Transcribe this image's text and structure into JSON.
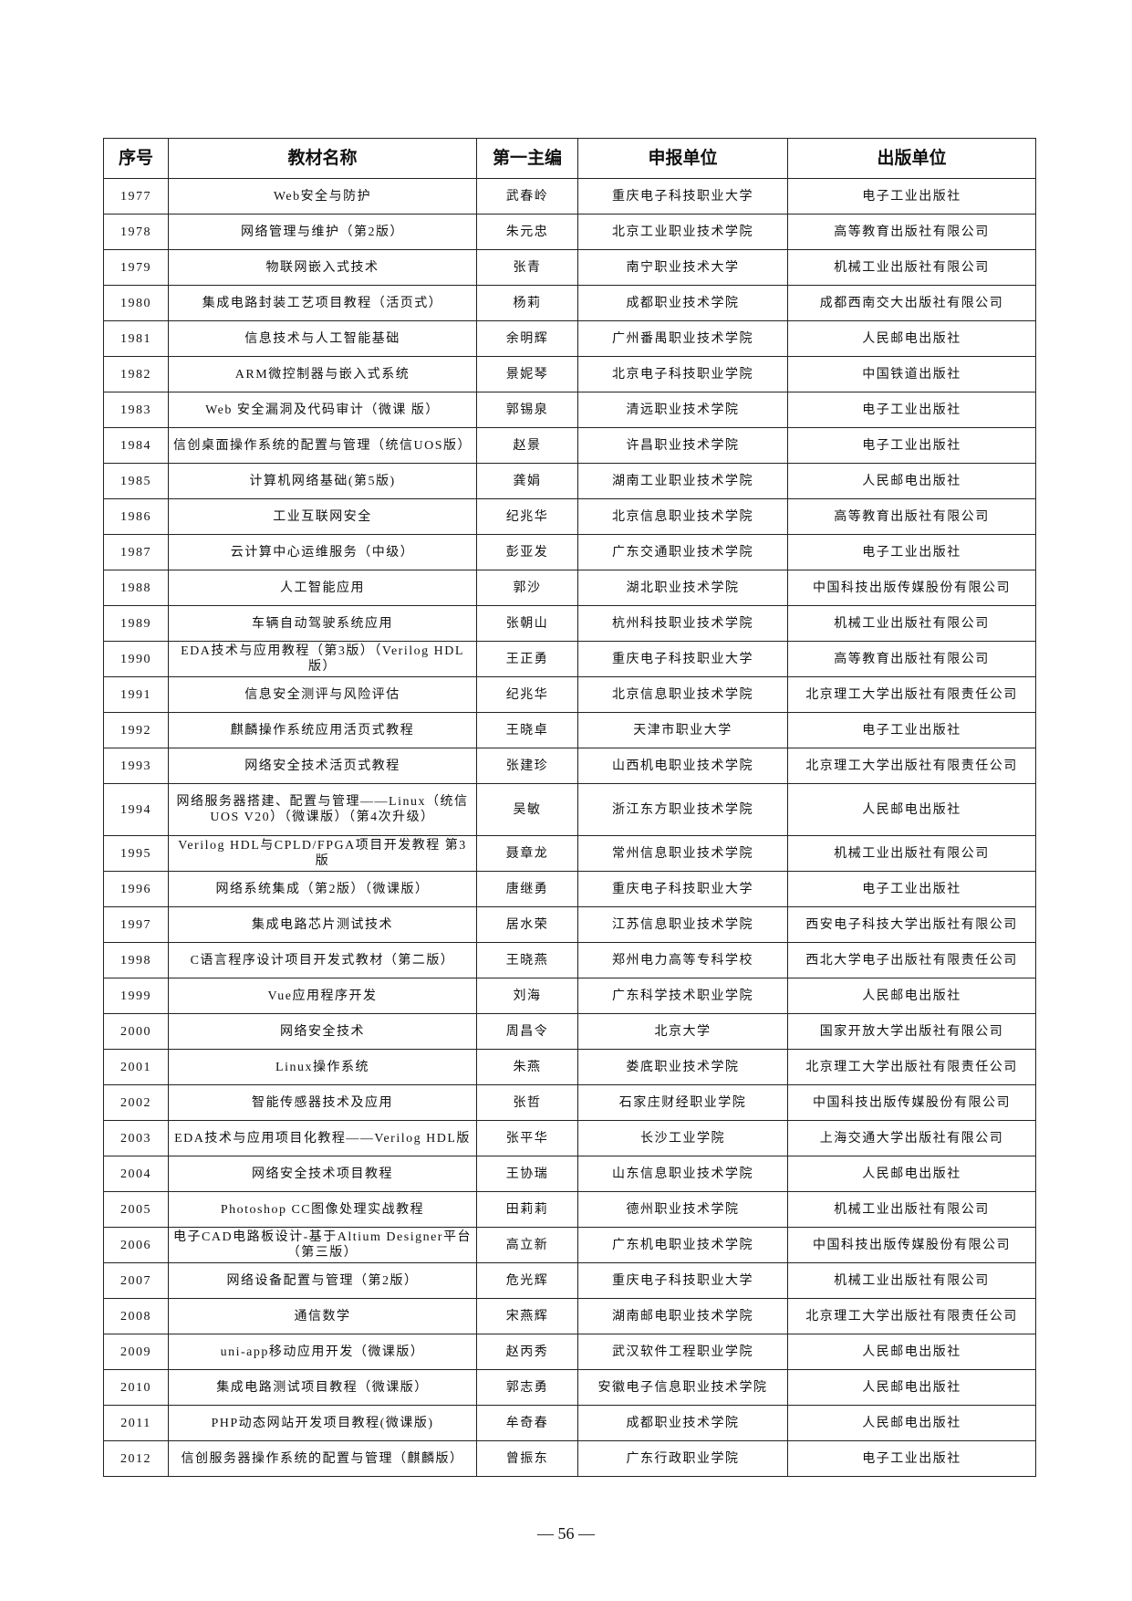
{
  "table": {
    "headers": [
      "序号",
      "教材名称",
      "第一主编",
      "申报单位",
      "出版单位"
    ],
    "rows": [
      [
        "1977",
        "Web安全与防护",
        "武春岭",
        "重庆电子科技职业大学",
        "电子工业出版社"
      ],
      [
        "1978",
        "网络管理与维护（第2版）",
        "朱元忠",
        "北京工业职业技术学院",
        "高等教育出版社有限公司"
      ],
      [
        "1979",
        "物联网嵌入式技术",
        "张青",
        "南宁职业技术大学",
        "机械工业出版社有限公司"
      ],
      [
        "1980",
        "集成电路封装工艺项目教程（活页式）",
        "杨莉",
        "成都职业技术学院",
        "成都西南交大出版社有限公司"
      ],
      [
        "1981",
        "信息技术与人工智能基础",
        "余明辉",
        "广州番禺职业技术学院",
        "人民邮电出版社"
      ],
      [
        "1982",
        "ARM微控制器与嵌入式系统",
        "景妮琴",
        "北京电子科技职业学院",
        "中国铁道出版社"
      ],
      [
        "1983",
        "Web 安全漏洞及代码审计（微课 版）",
        "郭锡泉",
        "清远职业技术学院",
        "电子工业出版社"
      ],
      [
        "1984",
        "信创桌面操作系统的配置与管理（统信UOS版）",
        "赵景",
        "许昌职业技术学院",
        "电子工业出版社"
      ],
      [
        "1985",
        "计算机网络基础(第5版)",
        "龚娟",
        "湖南工业职业技术学院",
        "人民邮电出版社"
      ],
      [
        "1986",
        "工业互联网安全",
        "纪兆华",
        "北京信息职业技术学院",
        "高等教育出版社有限公司"
      ],
      [
        "1987",
        "云计算中心运维服务（中级）",
        "彭亚发",
        "广东交通职业技术学院",
        "电子工业出版社"
      ],
      [
        "1988",
        "人工智能应用",
        "郭沙",
        "湖北职业技术学院",
        "中国科技出版传媒股份有限公司"
      ],
      [
        "1989",
        "车辆自动驾驶系统应用",
        "张朝山",
        "杭州科技职业技术学院",
        "机械工业出版社有限公司"
      ],
      [
        "1990",
        "EDA技术与应用教程（第3版）（Verilog HDL版）",
        "王正勇",
        "重庆电子科技职业大学",
        "高等教育出版社有限公司"
      ],
      [
        "1991",
        "信息安全测评与风险评估",
        "纪兆华",
        "北京信息职业技术学院",
        "北京理工大学出版社有限责任公司"
      ],
      [
        "1992",
        "麒麟操作系统应用活页式教程",
        "王晓卓",
        "天津市职业大学",
        "电子工业出版社"
      ],
      [
        "1993",
        "网络安全技术活页式教程",
        "张建珍",
        "山西机电职业技术学院",
        "北京理工大学出版社有限责任公司"
      ],
      [
        "1994",
        "网络服务器搭建、配置与管理——Linux（统信UOS V20）（微课版）（第4次升级）",
        "吴敏",
        "浙江东方职业技术学院",
        "人民邮电出版社"
      ],
      [
        "1995",
        "Verilog HDL与CPLD/FPGA项目开发教程 第3版",
        "聂章龙",
        "常州信息职业技术学院",
        "机械工业出版社有限公司"
      ],
      [
        "1996",
        "网络系统集成（第2版）（微课版）",
        "唐继勇",
        "重庆电子科技职业大学",
        "电子工业出版社"
      ],
      [
        "1997",
        "集成电路芯片测试技术",
        "居水荣",
        "江苏信息职业技术学院",
        "西安电子科技大学出版社有限公司"
      ],
      [
        "1998",
        "C语言程序设计项目开发式教材（第二版）",
        "王晓燕",
        "郑州电力高等专科学校",
        "西北大学电子出版社有限责任公司"
      ],
      [
        "1999",
        "Vue应用程序开发",
        "刘海",
        "广东科学技术职业学院",
        "人民邮电出版社"
      ],
      [
        "2000",
        "网络安全技术",
        "周昌令",
        "北京大学",
        "国家开放大学出版社有限公司"
      ],
      [
        "2001",
        "Linux操作系统",
        "朱燕",
        "娄底职业技术学院",
        "北京理工大学出版社有限责任公司"
      ],
      [
        "2002",
        "智能传感器技术及应用",
        "张哲",
        "石家庄财经职业学院",
        "中国科技出版传媒股份有限公司"
      ],
      [
        "2003",
        "EDA技术与应用项目化教程——Verilog HDL版",
        "张平华",
        "长沙工业学院",
        "上海交通大学出版社有限公司"
      ],
      [
        "2004",
        "网络安全技术项目教程",
        "王协瑞",
        "山东信息职业技术学院",
        "人民邮电出版社"
      ],
      [
        "2005",
        "Photoshop CC图像处理实战教程",
        "田莉莉",
        "德州职业技术学院",
        "机械工业出版社有限公司"
      ],
      [
        "2006",
        "电子CAD电路板设计-基于Altium Designer平台（第三版）",
        "高立新",
        "广东机电职业技术学院",
        "中国科技出版传媒股份有限公司"
      ],
      [
        "2007",
        "网络设备配置与管理（第2版）",
        "危光辉",
        "重庆电子科技职业大学",
        "机械工业出版社有限公司"
      ],
      [
        "2008",
        "通信数学",
        "宋燕辉",
        "湖南邮电职业技术学院",
        "北京理工大学出版社有限责任公司"
      ],
      [
        "2009",
        "uni-app移动应用开发（微课版）",
        "赵丙秀",
        "武汉软件工程职业学院",
        "人民邮电出版社"
      ],
      [
        "2010",
        "集成电路测试项目教程（微课版）",
        "郭志勇",
        "安徽电子信息职业技术学院",
        "人民邮电出版社"
      ],
      [
        "2011",
        "PHP动态网站开发项目教程(微课版)",
        "牟奇春",
        "成都职业技术学院",
        "人民邮电出版社"
      ],
      [
        "2012",
        "信创服务器操作系统的配置与管理（麒麟版）",
        "曾振东",
        "广东行政职业学院",
        "电子工业出版社"
      ]
    ]
  },
  "page_number": "— 56 —"
}
